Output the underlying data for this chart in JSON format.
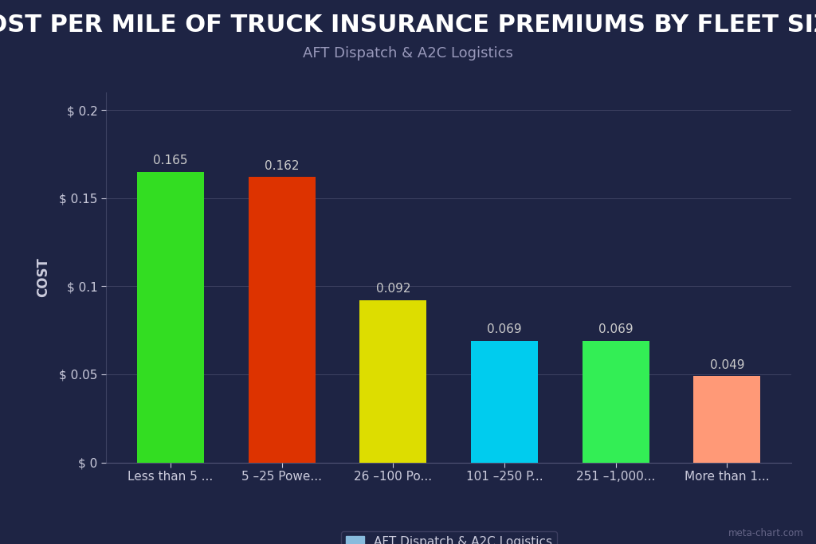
{
  "title": "COST PER MILE OF TRUCK INSURANCE PREMIUMS BY FLEET SIZE",
  "subtitle": "AFT Dispatch & A2C Logistics",
  "ylabel": "COST",
  "categories": [
    "Less than 5 ...",
    "5 –25 Powe...",
    "26 –100 Po...",
    "101 –250 P...",
    "251 –1,000...",
    "More than 1..."
  ],
  "values": [
    0.165,
    0.162,
    0.092,
    0.069,
    0.069,
    0.049
  ],
  "bar_colors": [
    "#33dd22",
    "#dd3300",
    "#dddd00",
    "#00ccee",
    "#33ee55",
    "#ff9977"
  ],
  "background_color": "#1e2444",
  "plot_bg_color": "#1e2444",
  "text_color": "#ccccdd",
  "grid_color": "#8888aa",
  "ylim": [
    0,
    0.21
  ],
  "yticks": [
    0,
    0.05,
    0.1,
    0.15,
    0.2
  ],
  "ytick_labels": [
    "$ 0",
    "$ 0.05",
    "$ 0.1",
    "$ 0.15",
    "$ 0.2"
  ],
  "legend_label": "AFT Dispatch & A2C Logistics",
  "legend_color": "#88bbdd",
  "watermark": "meta-chart.com",
  "title_fontsize": 22,
  "subtitle_fontsize": 13,
  "ylabel_fontsize": 12,
  "tick_fontsize": 11,
  "bar_label_fontsize": 11,
  "bar_width": 0.6,
  "title_color": "#ffffff",
  "subtitle_color": "#9999bb",
  "bar_label_color": "#cccccc"
}
